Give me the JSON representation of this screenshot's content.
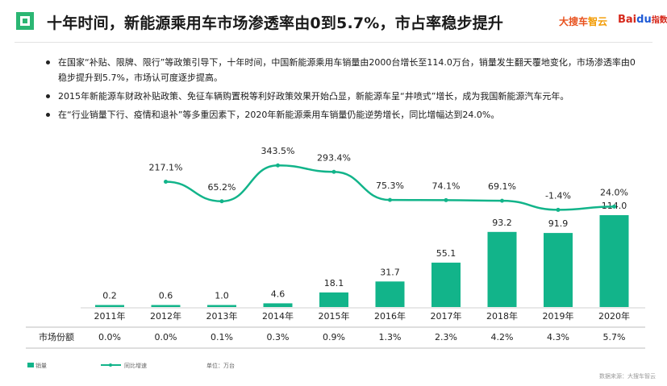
{
  "header": {
    "title": "十年时间，新能源乘用车市场渗透率由0到5.7%，市占率稳步提升",
    "brand_left_a": "大搜车",
    "brand_left_b": "智云",
    "brand_right_a": "Bai",
    "brand_right_b": "du",
    "brand_right_c": "指数"
  },
  "bullets": [
    "在国家“补贴、限牌、限行”等政策引导下，十年时间，中国新能源乘用车销量由2000台增长至114.0万台，销量发生翻天覆地变化，市场渗透率由0稳步提升到5.7%，市场认可度逐步提高。",
    "2015年新能源车财政补贴政策、免征车辆购置税等利好政策效果开始凸显，新能源车呈“井喷式”增长，成为我国新能源汽车元年。",
    "在“行业销量下行、疫情和退补”等多重因素下，2020年新能源乘用车销量仍能逆势增长，同比增幅达到24.0%。"
  ],
  "colors": {
    "accent": "#12b48a",
    "logo": "#2bb673"
  },
  "chart_data": {
    "type": "bar",
    "categories": [
      "2011年",
      "2012年",
      "2013年",
      "2014年",
      "2015年",
      "2016年",
      "2017年",
      "2018年",
      "2019年",
      "2020年"
    ],
    "series": [
      {
        "name": "销量",
        "type": "bar",
        "values": [
          0.2,
          0.6,
          1.0,
          4.6,
          18.1,
          31.7,
          55.1,
          93.2,
          91.9,
          114.0
        ],
        "labels": [
          "0.2",
          "0.6",
          "1.0",
          "4.6",
          "18.1",
          "31.7",
          "55.1",
          "93.2",
          "91.9",
          "114.0"
        ]
      },
      {
        "name": "同比增速",
        "type": "line",
        "values": [
          null,
          217.1,
          65.2,
          343.5,
          293.4,
          75.3,
          74.1,
          69.1,
          -1.4,
          24.0
        ],
        "labels": [
          "",
          "217.1%",
          "65.2%",
          "343.5%",
          "293.4%",
          "75.3%",
          "74.1%",
          "69.1%",
          "-1.4%",
          "24.0%"
        ]
      }
    ],
    "share_row": {
      "label": "市场份额",
      "values": [
        "0.0%",
        "0.0%",
        "0.1%",
        "0.3%",
        "0.9%",
        "1.3%",
        "2.3%",
        "4.2%",
        "4.3%",
        "5.7%"
      ]
    },
    "unit": "单位：万台",
    "source": "数据来源：大搜车智云"
  }
}
